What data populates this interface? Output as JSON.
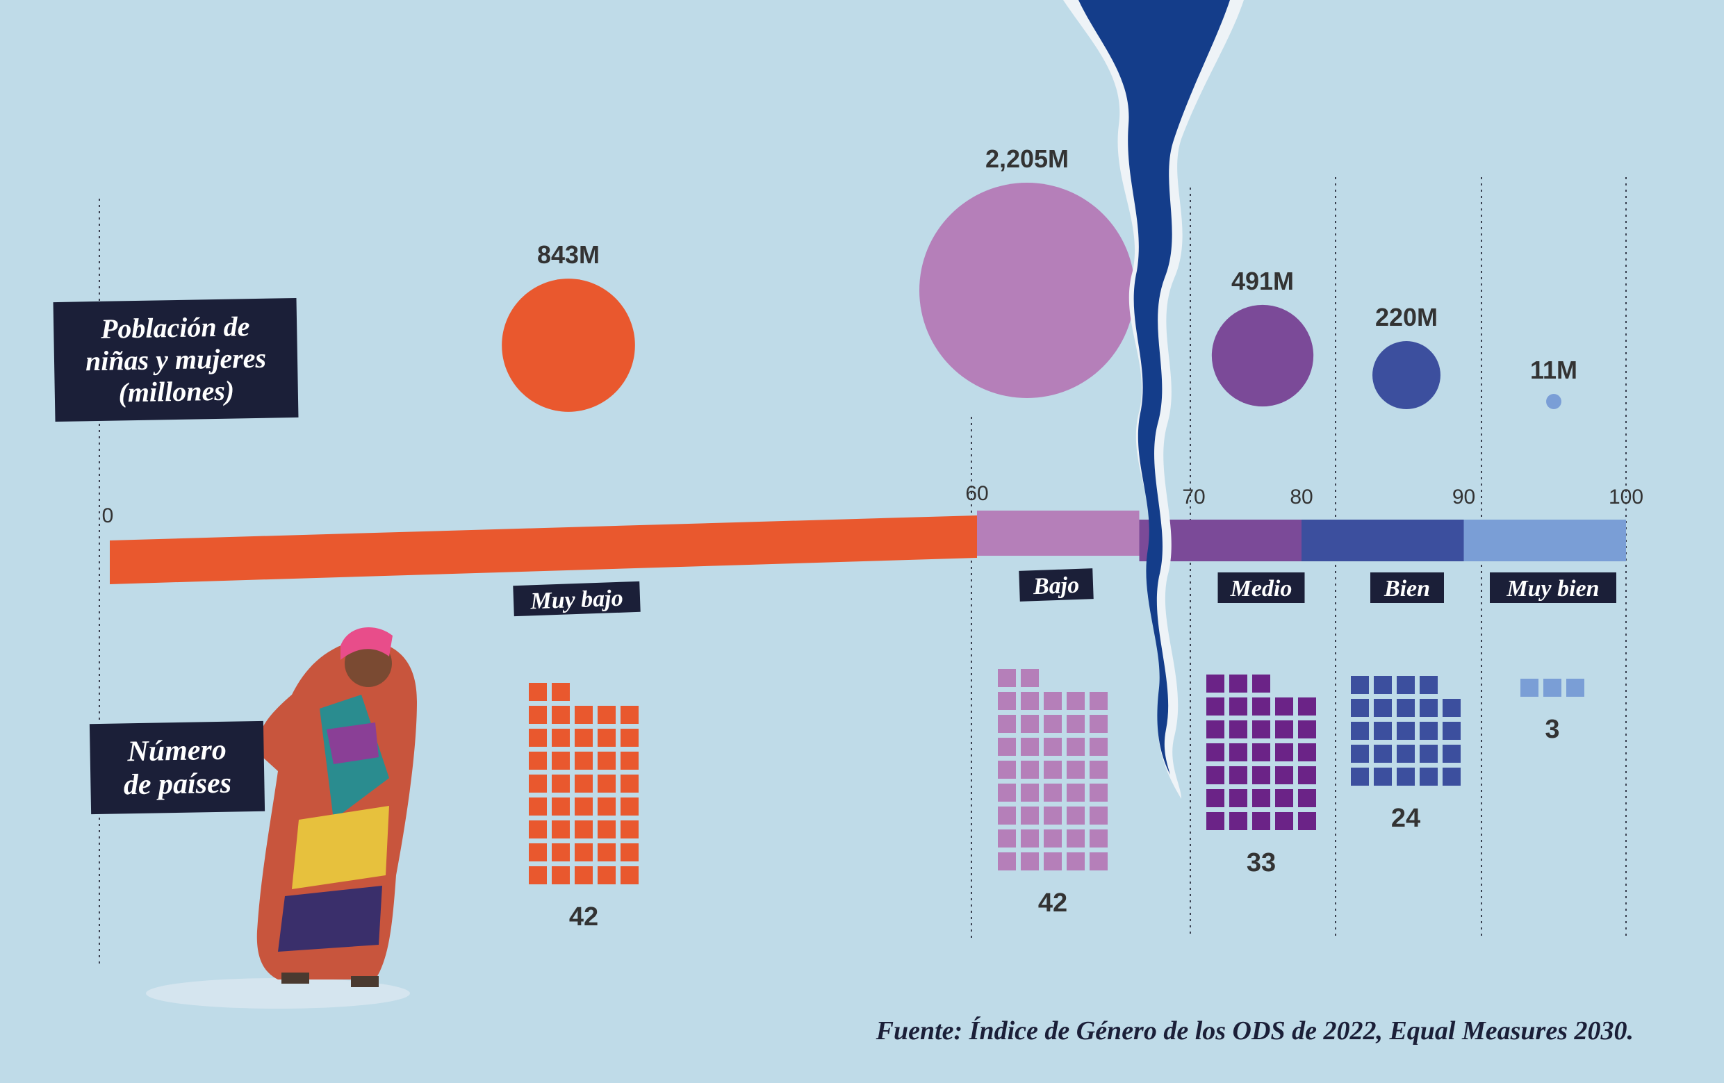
{
  "labels": {
    "population_lines": [
      "Población de",
      "niñas y mujeres",
      "(millones)"
    ],
    "countries_lines": [
      "Número",
      "de países"
    ]
  },
  "source": "Fuente: Índice de Género de los ODS de 2022, Equal Measures 2030.",
  "colors": {
    "background": "#bfdbe8",
    "muy_bajo": "#e9582e",
    "bajo": "#b57fb9",
    "medio": "#7b4a98",
    "bien": "#3c4f9e",
    "muy_bien": "#7a9ed6",
    "medio_squares": "#6b2387",
    "label_box": "#1b1f38",
    "tear": "#143d8a"
  },
  "chart_data": {
    "type": "bar",
    "title": "",
    "axis": {
      "min": 0,
      "max": 100,
      "ticks": [
        0,
        60,
        70,
        80,
        90,
        100
      ]
    },
    "categories": [
      {
        "name": "Muy bajo",
        "range": [
          0,
          60
        ],
        "population_label": "843M",
        "population": 843,
        "countries": 42,
        "color_key": "muy_bajo"
      },
      {
        "name": "Bajo",
        "range": [
          60,
          70
        ],
        "population_label": "2,205M",
        "population": 2205,
        "countries": 42,
        "color_key": "bajo"
      },
      {
        "name": "Medio",
        "range": [
          70,
          80
        ],
        "population_label": "491M",
        "population": 491,
        "countries": 33,
        "color_key": "medio_squares"
      },
      {
        "name": "Bien",
        "range": [
          80,
          90
        ],
        "population_label": "220M",
        "population": 220,
        "countries": 24,
        "color_key": "bien"
      },
      {
        "name": "Muy bien",
        "range": [
          90,
          100
        ],
        "population_label": "11M",
        "population": 11,
        "countries": 3,
        "color_key": "muy_bien"
      }
    ]
  }
}
